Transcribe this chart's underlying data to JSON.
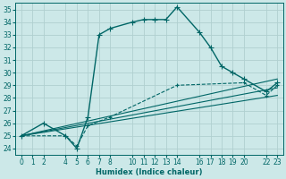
{
  "xlabel": "Humidex (Indice chaleur)",
  "bg_color": "#cce8e8",
  "grid_color": "#b0d0d0",
  "line_color": "#006666",
  "ylim": [
    23.5,
    35.5
  ],
  "xlim": [
    -0.5,
    23.5
  ],
  "yticks": [
    24,
    25,
    26,
    27,
    28,
    29,
    30,
    31,
    32,
    33,
    34,
    35
  ],
  "xticks": [
    0,
    1,
    2,
    4,
    5,
    6,
    7,
    8,
    10,
    11,
    12,
    13,
    14,
    16,
    17,
    18,
    19,
    20,
    22,
    23
  ],
  "lines": [
    {
      "x": [
        0,
        2,
        4,
        5,
        6,
        7,
        8,
        10,
        11,
        12,
        13,
        14,
        16,
        17,
        18,
        19,
        20,
        22,
        23
      ],
      "y": [
        25.0,
        26.0,
        25.0,
        24.0,
        26.5,
        33.0,
        33.5,
        34.0,
        34.2,
        34.2,
        34.2,
        35.2,
        33.2,
        32.0,
        30.5,
        30.0,
        29.5,
        28.5,
        29.2
      ],
      "style": "-",
      "marker": "+",
      "markersize": 4,
      "linewidth": 1.0
    },
    {
      "x": [
        0,
        4,
        5,
        6,
        8,
        14,
        20,
        22,
        23
      ],
      "y": [
        25.0,
        25.0,
        24.2,
        25.8,
        26.5,
        29.0,
        29.2,
        28.2,
        29.0
      ],
      "style": "--",
      "marker": "+",
      "markersize": 3,
      "linewidth": 0.8
    },
    {
      "x": [
        0,
        23
      ],
      "y": [
        25.0,
        29.5
      ],
      "style": "-",
      "marker": null,
      "markersize": 0,
      "linewidth": 0.8
    },
    {
      "x": [
        0,
        23
      ],
      "y": [
        25.0,
        28.8
      ],
      "style": "-",
      "marker": null,
      "markersize": 0,
      "linewidth": 0.8
    },
    {
      "x": [
        0,
        23
      ],
      "y": [
        25.0,
        28.2
      ],
      "style": "-",
      "marker": null,
      "markersize": 0,
      "linewidth": 0.8
    }
  ]
}
